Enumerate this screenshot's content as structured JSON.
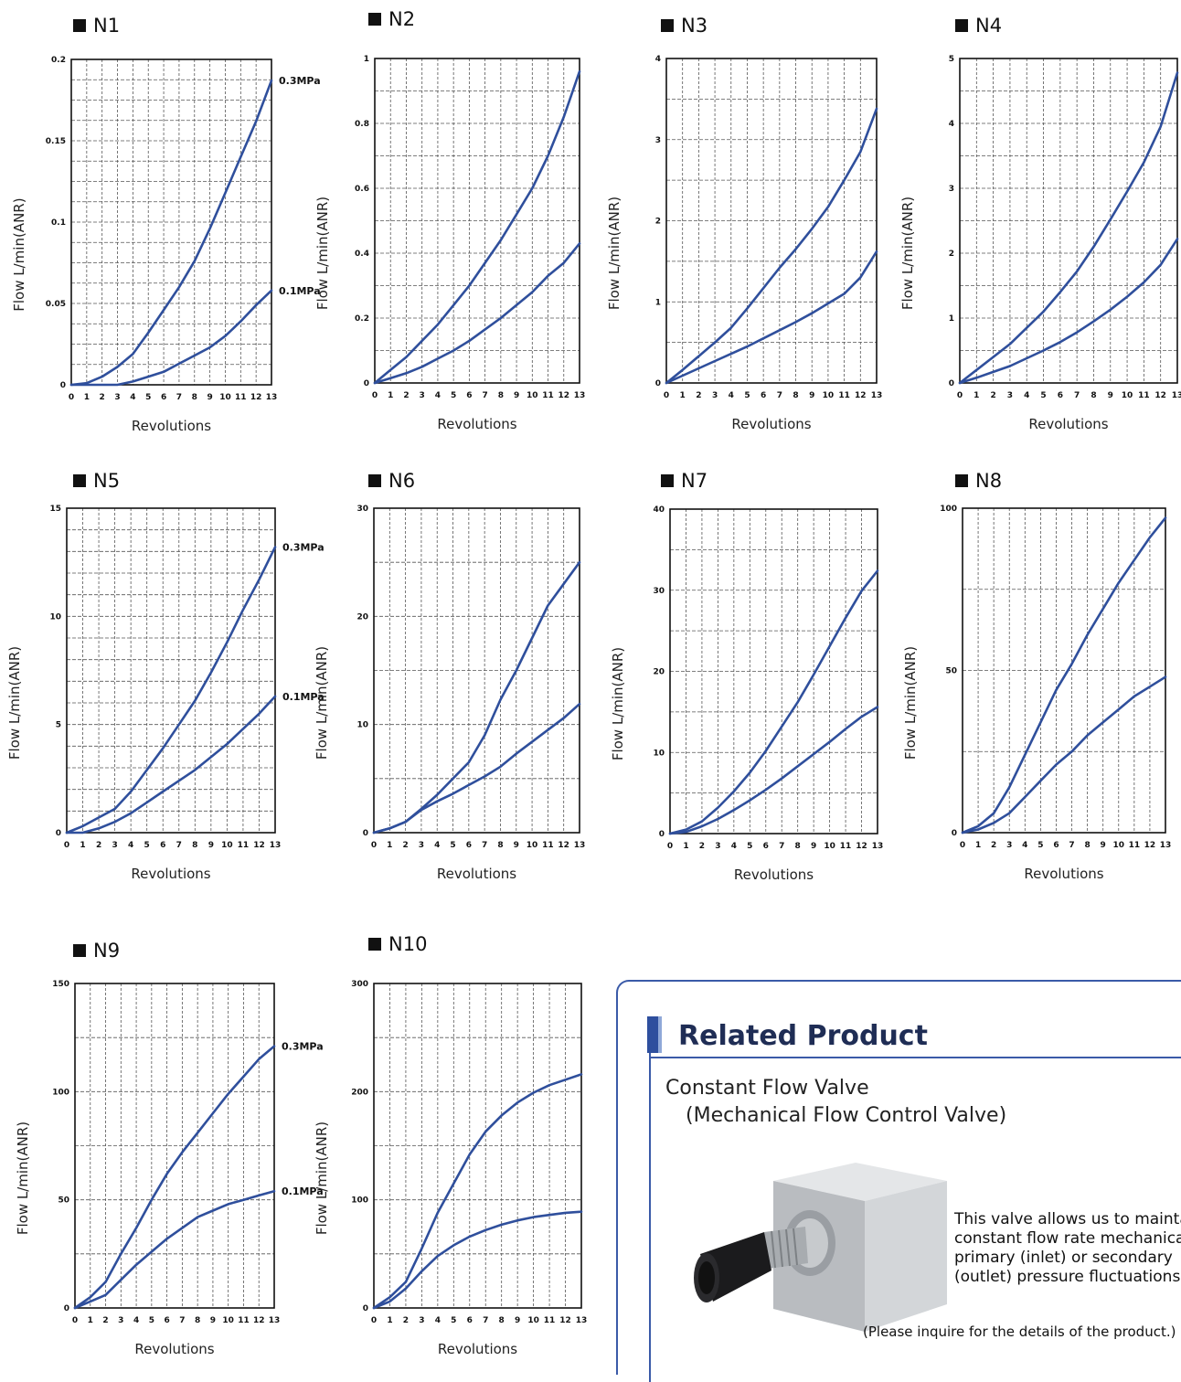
{
  "charts": [
    {
      "title": "N1",
      "ymax": 0.2,
      "yticks": [
        "0",
        "0.05",
        "0.1",
        "0.15",
        "0.2"
      ],
      "minors": 3,
      "series": [
        {
          "name": "0.3MPa",
          "values": [
            0,
            0.001,
            0.005,
            0.011,
            0.019,
            0.032,
            0.046,
            0.06,
            0.076,
            0.096,
            0.118,
            0.14,
            0.162,
            0.187
          ]
        },
        {
          "name": "0.1MPa",
          "values": [
            0,
            0,
            0,
            0,
            0.002,
            0.005,
            0.008,
            0.013,
            0.018,
            0.023,
            0.03,
            0.039,
            0.049,
            0.058
          ]
        }
      ]
    },
    {
      "title": "N2",
      "ymax": 1,
      "yticks": [
        "0",
        "0.2",
        "0.4",
        "0.6",
        "0.8",
        "1"
      ],
      "minors": 1,
      "series": [
        {
          "name": "",
          "values": [
            0,
            0.04,
            0.08,
            0.13,
            0.18,
            0.24,
            0.3,
            0.37,
            0.44,
            0.52,
            0.6,
            0.7,
            0.82,
            0.96
          ]
        },
        {
          "name": "",
          "values": [
            0,
            0.015,
            0.03,
            0.05,
            0.075,
            0.1,
            0.13,
            0.165,
            0.2,
            0.24,
            0.28,
            0.33,
            0.37,
            0.43
          ]
        }
      ]
    },
    {
      "title": "N3",
      "ymax": 4,
      "yticks": [
        "0",
        "1",
        "2",
        "3",
        "4"
      ],
      "minors": 1,
      "series": [
        {
          "name": "",
          "values": [
            0,
            0.16,
            0.33,
            0.5,
            0.68,
            0.92,
            1.17,
            1.42,
            1.65,
            1.9,
            2.17,
            2.5,
            2.85,
            3.38
          ]
        },
        {
          "name": "",
          "values": [
            0,
            0.09,
            0.18,
            0.27,
            0.36,
            0.45,
            0.55,
            0.65,
            0.75,
            0.86,
            0.98,
            1.1,
            1.3,
            1.62
          ]
        }
      ]
    },
    {
      "title": "N4",
      "ymax": 5,
      "yticks": [
        "0",
        "1",
        "2",
        "3",
        "4",
        "5"
      ],
      "minors": 1,
      "series": [
        {
          "name": "",
          "values": [
            0,
            0.2,
            0.4,
            0.6,
            0.85,
            1.1,
            1.4,
            1.72,
            2.1,
            2.52,
            2.95,
            3.4,
            3.95,
            4.78
          ]
        },
        {
          "name": "",
          "values": [
            0,
            0.08,
            0.17,
            0.26,
            0.38,
            0.5,
            0.63,
            0.78,
            0.95,
            1.13,
            1.33,
            1.55,
            1.82,
            2.22
          ]
        }
      ]
    },
    {
      "title": "N5",
      "ymax": 15,
      "yticks": [
        "0",
        "5",
        "10",
        "15"
      ],
      "minors": 4,
      "series": [
        {
          "name": "0.3MPa",
          "values": [
            0,
            0.3,
            0.7,
            1.1,
            1.9,
            2.9,
            3.9,
            5,
            6.1,
            7.4,
            8.8,
            10.3,
            11.7,
            13.2
          ]
        },
        {
          "name": "0.1MPa",
          "values": [
            0,
            0,
            0.2,
            0.5,
            0.9,
            1.4,
            1.9,
            2.4,
            2.9,
            3.5,
            4.1,
            4.8,
            5.5,
            6.3
          ]
        }
      ]
    },
    {
      "title": "N6",
      "ymax": 30,
      "yticks": [
        "0",
        "10",
        "20",
        "30"
      ],
      "minors": 1,
      "series": [
        {
          "name": "",
          "values": [
            0,
            0.4,
            1,
            2.2,
            3.5,
            5,
            6.5,
            9,
            12.3,
            15,
            18,
            21,
            23,
            25
          ]
        },
        {
          "name": "",
          "values": [
            0,
            0.4,
            1,
            2.1,
            2.9,
            3.6,
            4.4,
            5.2,
            6.1,
            7.3,
            8.4,
            9.5,
            10.6,
            11.9
          ]
        }
      ]
    },
    {
      "title": "N7",
      "ymax": 40,
      "yticks": [
        "0",
        "10",
        "20",
        "30",
        "40"
      ],
      "minors": 1,
      "series": [
        {
          "name": "",
          "values": [
            0,
            0.5,
            1.5,
            3.2,
            5.2,
            7.5,
            10.2,
            13.2,
            16.2,
            19.6,
            23.1,
            26.6,
            29.9,
            32.4
          ]
        },
        {
          "name": "",
          "values": [
            0,
            0.2,
            0.9,
            1.8,
            2.9,
            4.1,
            5.4,
            6.8,
            8.3,
            9.8,
            11.3,
            12.9,
            14.4,
            15.6
          ]
        }
      ]
    },
    {
      "title": "N8",
      "ymax": 100,
      "yticks": [
        "0",
        "50",
        "100"
      ],
      "minors": 1,
      "series": [
        {
          "name": "",
          "values": [
            0,
            2,
            6,
            14,
            24,
            34,
            44,
            52,
            61,
            69,
            77,
            84,
            91,
            97
          ]
        },
        {
          "name": "",
          "values": [
            0,
            1,
            3,
            6,
            11,
            16,
            21,
            25,
            30,
            34,
            38,
            42,
            45,
            48
          ]
        }
      ]
    },
    {
      "title": "N9",
      "ymax": 150,
      "yticks": [
        "0",
        "50",
        "100",
        "150"
      ],
      "minors": 1,
      "series": [
        {
          "name": "0.3MPa",
          "values": [
            0,
            5,
            12,
            25,
            37,
            50,
            62,
            72,
            81,
            90,
            99,
            107,
            115,
            121
          ]
        },
        {
          "name": "0.1MPa",
          "values": [
            0,
            3,
            6,
            13,
            20,
            26,
            32,
            37,
            42,
            45,
            48,
            50,
            52,
            54
          ]
        }
      ]
    },
    {
      "title": "N10",
      "ymax": 300,
      "yticks": [
        "0",
        "100",
        "200",
        "300"
      ],
      "minors": 1,
      "series": [
        {
          "name": "",
          "values": [
            0,
            10,
            24,
            55,
            88,
            115,
            142,
            163,
            178,
            190,
            199,
            206,
            211,
            216
          ]
        },
        {
          "name": "",
          "values": [
            0,
            6,
            18,
            34,
            48,
            58,
            66,
            72,
            77,
            81,
            84,
            86,
            88,
            89
          ]
        }
      ]
    }
  ],
  "axis": {
    "xlabel": "Revolutions",
    "ylabel": "Flow  L/min(ANR)",
    "xticks": [
      "0",
      "1",
      "2",
      "3",
      "4",
      "5",
      "6",
      "7",
      "8",
      "9",
      "10",
      "11",
      "12",
      "13"
    ]
  },
  "colors": {
    "line": "#2f4f9c",
    "grid": "#555555",
    "frame": "#111111"
  },
  "related": {
    "heading": "Related Product",
    "product_name": "Constant Flow Valve",
    "product_sub": "(Mechanical Flow Control Valve)",
    "description": "This valve allows us to maintain a constant flow rate mechanically at primary (inlet) or secondary (outlet) pressure fluctuations.",
    "note": "(Please inquire for the details of the product.)"
  }
}
